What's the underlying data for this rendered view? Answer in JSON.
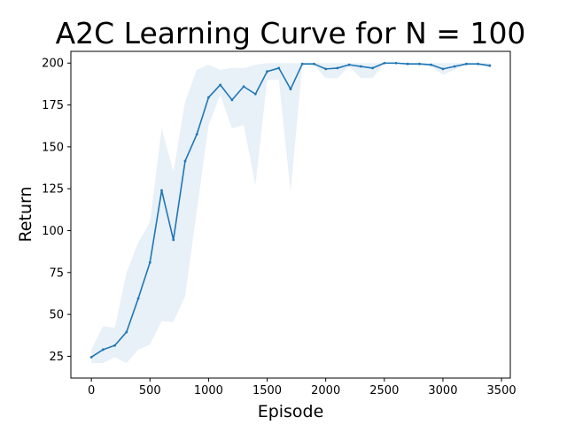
{
  "chart_data": {
    "type": "line",
    "title": "A2C Learning Curve for N = 100",
    "xlabel": "Episode",
    "ylabel": "Return",
    "xlim": [
      -175,
      3575
    ],
    "ylim": [
      12,
      207
    ],
    "xticks": [
      0,
      500,
      1000,
      1500,
      2000,
      2500,
      3000,
      3500
    ],
    "yticks": [
      25,
      50,
      75,
      100,
      125,
      150,
      175,
      200
    ],
    "grid": false,
    "legend": "none",
    "series": [
      {
        "color": "#1f77b4",
        "band_color": "#e8f0f8",
        "x": [
          0,
          100,
          200,
          300,
          400,
          500,
          600,
          700,
          800,
          900,
          1000,
          1100,
          1200,
          1300,
          1400,
          1500,
          1600,
          1700,
          1800,
          1900,
          2000,
          2100,
          2200,
          2300,
          2400,
          2500,
          2600,
          2700,
          2800,
          2900,
          3000,
          3100,
          3200,
          3300,
          3400
        ],
        "y": [
          24.5,
          29,
          31.5,
          39.5,
          59.5,
          81,
          124,
          94.5,
          141.5,
          157.5,
          179.5,
          187,
          178,
          186,
          181.5,
          195,
          197,
          184.5,
          199.5,
          199.5,
          196.5,
          197,
          199,
          198,
          197,
          200,
          200,
          199.5,
          199.5,
          199,
          196.5,
          198,
          199.5,
          199.5,
          198.5
        ],
        "upper": [
          29,
          43,
          42,
          75,
          93,
          105,
          161,
          135,
          177,
          196,
          199,
          196,
          197,
          197,
          199,
          200,
          200,
          200,
          200,
          200,
          200,
          200,
          200,
          200,
          200,
          200,
          200,
          200,
          200,
          200,
          200,
          200,
          200,
          200,
          200
        ],
        "lower": [
          21,
          21,
          24.5,
          21,
          29,
          32,
          46,
          45.5,
          61,
          112,
          163,
          181,
          161,
          163,
          127,
          190,
          190,
          123,
          199,
          199,
          191,
          191,
          198,
          191,
          191,
          200,
          200,
          199,
          199,
          198,
          193,
          196,
          199,
          199,
          197
        ]
      }
    ]
  }
}
